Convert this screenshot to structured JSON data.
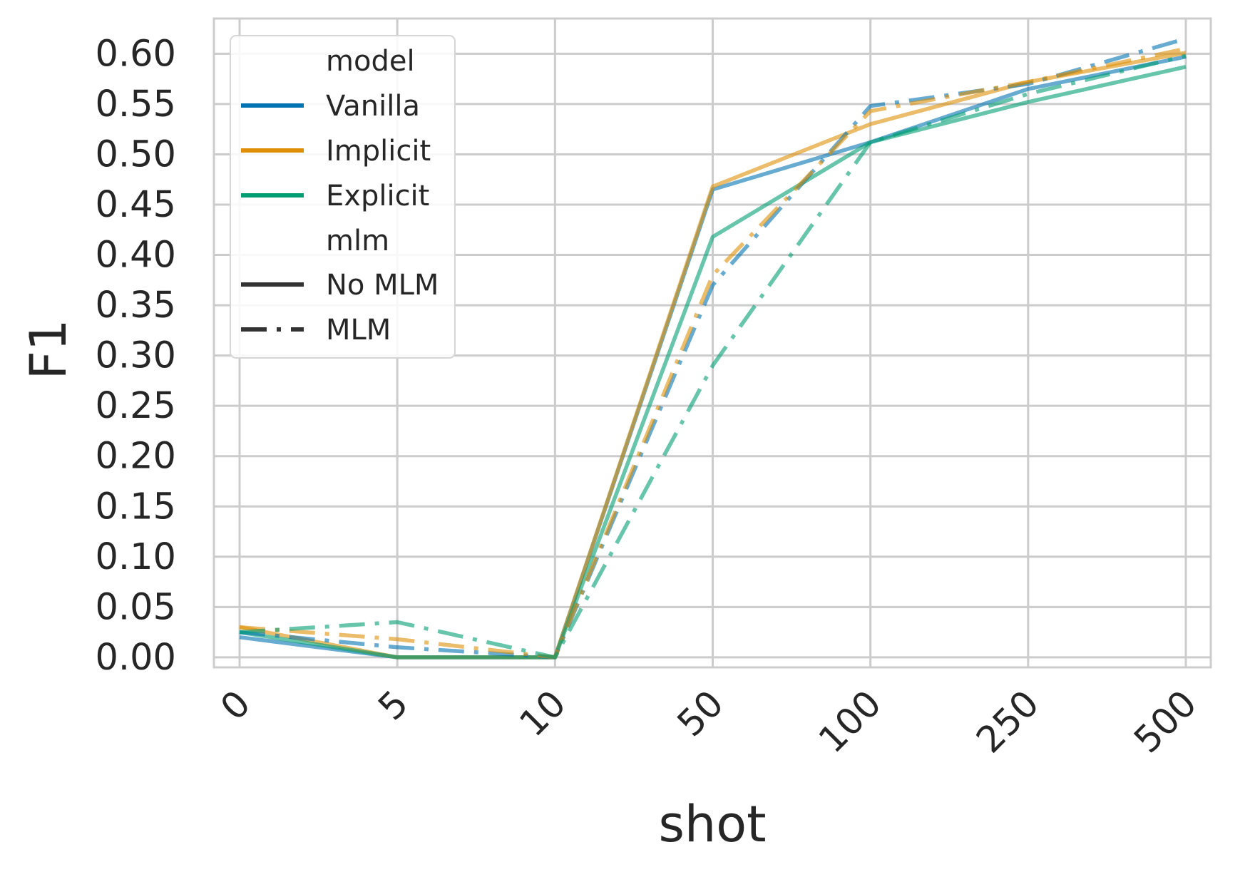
{
  "chart_data": {
    "type": "line",
    "xlabel": "shot",
    "ylabel": "F1",
    "categories": [
      "0",
      "5",
      "10",
      "50",
      "100",
      "250",
      "500"
    ],
    "yticks": [
      "0.00",
      "0.05",
      "0.10",
      "0.15",
      "0.20",
      "0.25",
      "0.30",
      "0.35",
      "0.40",
      "0.45",
      "0.50",
      "0.55",
      "0.60"
    ],
    "ylim": [
      -0.01,
      0.635
    ],
    "grid": true,
    "legend_position": "top-left",
    "legend": {
      "hue_title": "model",
      "style_title": "mlm",
      "hue_entries": [
        {
          "label": "Vanilla",
          "color": "#0173b2"
        },
        {
          "label": "Implicit",
          "color": "#de8f05"
        },
        {
          "label": "Explicit",
          "color": "#029e73"
        }
      ],
      "style_entries": [
        {
          "label": "No MLM",
          "dash": "solid"
        },
        {
          "label": "MLM",
          "dash": "dashdot"
        }
      ],
      "style_color": "#333333"
    },
    "series": [
      {
        "model": "Vanilla",
        "mlm": "No MLM",
        "color": "#0173b2",
        "dash": "solid",
        "values": [
          0.02,
          0.0,
          0.0,
          0.465,
          0.512,
          0.565,
          0.597
        ]
      },
      {
        "model": "Implicit",
        "mlm": "No MLM",
        "color": "#de8f05",
        "dash": "solid",
        "values": [
          0.03,
          0.0,
          0.0,
          0.468,
          0.53,
          0.572,
          0.601
        ]
      },
      {
        "model": "Explicit",
        "mlm": "No MLM",
        "color": "#029e73",
        "dash": "solid",
        "values": [
          0.025,
          0.0,
          0.0,
          0.418,
          0.512,
          0.552,
          0.587
        ]
      },
      {
        "model": "Vanilla",
        "mlm": "MLM",
        "color": "#0173b2",
        "dash": "dashdot",
        "values": [
          0.025,
          0.01,
          0.0,
          0.37,
          0.548,
          0.57,
          0.615
        ]
      },
      {
        "model": "Implicit",
        "mlm": "MLM",
        "color": "#de8f05",
        "dash": "dashdot",
        "values": [
          0.03,
          0.018,
          0.0,
          0.38,
          0.543,
          0.572,
          0.605
        ]
      },
      {
        "model": "Explicit",
        "mlm": "MLM",
        "color": "#029e73",
        "dash": "dashdot",
        "values": [
          0.025,
          0.035,
          0.0,
          0.29,
          0.512,
          0.56,
          0.598
        ]
      }
    ]
  }
}
